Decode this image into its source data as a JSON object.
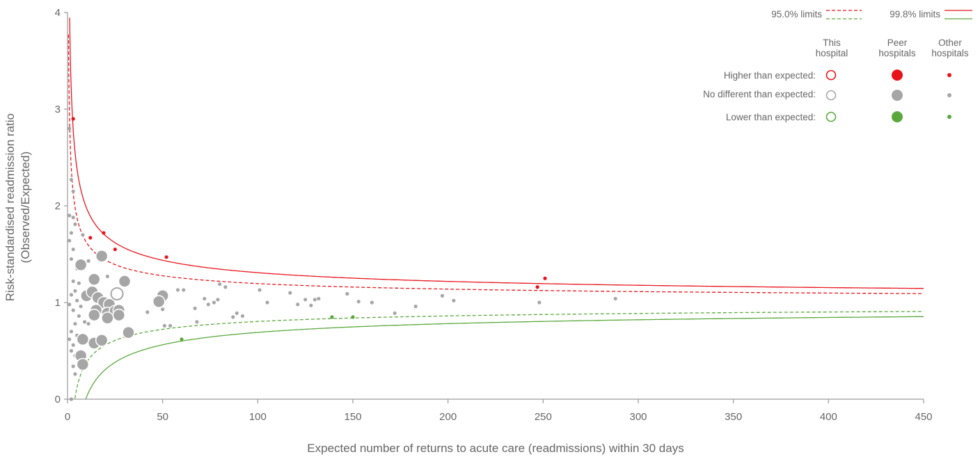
{
  "chart_data": {
    "type": "scatter",
    "title": "",
    "xlabel": "Expected number of returns to acute care (readmissions) within 30 days",
    "ylabel_line1": "Risk-standardised readmission ratio",
    "ylabel_line2": "(Observed/Expected)",
    "xlim": [
      0,
      450
    ],
    "ylim": [
      0,
      4
    ],
    "x_ticks": [
      0,
      50,
      100,
      150,
      200,
      250,
      300,
      350,
      400,
      450
    ],
    "y_ticks": [
      0,
      1,
      2,
      3,
      4
    ],
    "grid": false,
    "legend_position": "top-right",
    "legend": {
      "limits_95": "95.0% limits",
      "limits_998": "99.8% limits",
      "col_this_line1": "This",
      "col_this_line2": "hospital",
      "col_peer_line1": "Peer",
      "col_peer_line2": "hospitals",
      "col_other_line1": "Other",
      "col_other_line2": "hospitals",
      "row_higher": "Higher than expected:",
      "row_nodiff": "No different than expected:",
      "row_lower": "Lower than expected:"
    },
    "colors": {
      "higher": "#e8141b",
      "nodiff": "#a6a6a6",
      "lower": "#5aa83c",
      "axis": "#9a9a9a"
    },
    "control_limits": [
      {
        "name": "99.8% upper",
        "z": 3.09,
        "side": "upper",
        "style": "solid",
        "color": "#e8141b"
      },
      {
        "name": "95.0% upper",
        "z": 1.96,
        "side": "upper",
        "style": "dashed",
        "color": "#e8141b"
      },
      {
        "name": "95.0% lower",
        "z": 1.96,
        "side": "lower",
        "style": "dashed",
        "color": "#5aa83c"
      },
      {
        "name": "99.8% lower",
        "z": 3.09,
        "side": "lower",
        "style": "solid",
        "color": "#5aa83c"
      }
    ],
    "this_hospital": [
      {
        "x": 26,
        "y": 1.09,
        "category": "nodiff"
      }
    ],
    "peer_hospitals": [
      {
        "x": 7,
        "y": 1.39,
        "category": "nodiff"
      },
      {
        "x": 18,
        "y": 1.48,
        "category": "nodiff"
      },
      {
        "x": 14,
        "y": 1.24,
        "category": "nodiff"
      },
      {
        "x": 30,
        "y": 1.22,
        "category": "nodiff"
      },
      {
        "x": 10,
        "y": 1.07,
        "category": "nodiff"
      },
      {
        "x": 13,
        "y": 1.11,
        "category": "nodiff"
      },
      {
        "x": 16,
        "y": 1.05,
        "category": "nodiff"
      },
      {
        "x": 19,
        "y": 1.0,
        "category": "nodiff"
      },
      {
        "x": 22,
        "y": 0.98,
        "category": "nodiff"
      },
      {
        "x": 15,
        "y": 0.92,
        "category": "nodiff"
      },
      {
        "x": 21,
        "y": 0.89,
        "category": "nodiff"
      },
      {
        "x": 25,
        "y": 0.91,
        "category": "nodiff"
      },
      {
        "x": 27,
        "y": 0.92,
        "category": "nodiff"
      },
      {
        "x": 14,
        "y": 0.87,
        "category": "nodiff"
      },
      {
        "x": 21,
        "y": 0.84,
        "category": "nodiff"
      },
      {
        "x": 27,
        "y": 0.87,
        "category": "nodiff"
      },
      {
        "x": 50,
        "y": 1.07,
        "category": "nodiff"
      },
      {
        "x": 48,
        "y": 1.01,
        "category": "nodiff"
      },
      {
        "x": 32,
        "y": 0.69,
        "category": "nodiff"
      },
      {
        "x": 8,
        "y": 0.62,
        "category": "nodiff"
      },
      {
        "x": 14,
        "y": 0.58,
        "category": "nodiff"
      },
      {
        "x": 18,
        "y": 0.61,
        "category": "nodiff"
      },
      {
        "x": 7,
        "y": 0.45,
        "category": "nodiff"
      },
      {
        "x": 8,
        "y": 0.36,
        "category": "nodiff"
      }
    ],
    "other_hospitals": [
      {
        "x": 3,
        "y": 2.9,
        "category": "higher"
      },
      {
        "x": 12,
        "y": 1.67,
        "category": "higher"
      },
      {
        "x": 19,
        "y": 1.72,
        "category": "higher"
      },
      {
        "x": 25,
        "y": 1.55,
        "category": "higher"
      },
      {
        "x": 52,
        "y": 1.47,
        "category": "higher"
      },
      {
        "x": 247,
        "y": 1.16,
        "category": "higher"
      },
      {
        "x": 251,
        "y": 1.25,
        "category": "higher"
      },
      {
        "x": 60,
        "y": 0.62,
        "category": "lower"
      },
      {
        "x": 139,
        "y": 0.85,
        "category": "lower"
      },
      {
        "x": 150,
        "y": 0.85,
        "category": "lower"
      },
      {
        "x": 1,
        "y": 2.8,
        "category": "nodiff"
      },
      {
        "x": 2,
        "y": 2.27,
        "category": "nodiff"
      },
      {
        "x": 3,
        "y": 2.15,
        "category": "nodiff"
      },
      {
        "x": 1,
        "y": 1.9,
        "category": "nodiff"
      },
      {
        "x": 3,
        "y": 1.88,
        "category": "nodiff"
      },
      {
        "x": 4,
        "y": 1.81,
        "category": "nodiff"
      },
      {
        "x": 2,
        "y": 1.72,
        "category": "nodiff"
      },
      {
        "x": 1,
        "y": 1.64,
        "category": "nodiff"
      },
      {
        "x": 3,
        "y": 1.55,
        "category": "nodiff"
      },
      {
        "x": 2,
        "y": 1.45,
        "category": "nodiff"
      },
      {
        "x": 5,
        "y": 1.35,
        "category": "nodiff"
      },
      {
        "x": 3,
        "y": 1.22,
        "category": "nodiff"
      },
      {
        "x": 6,
        "y": 1.2,
        "category": "nodiff"
      },
      {
        "x": 4,
        "y": 1.12,
        "category": "nodiff"
      },
      {
        "x": 2,
        "y": 1.08,
        "category": "nodiff"
      },
      {
        "x": 5,
        "y": 1.02,
        "category": "nodiff"
      },
      {
        "x": 1,
        "y": 0.98,
        "category": "nodiff"
      },
      {
        "x": 7,
        "y": 0.96,
        "category": "nodiff"
      },
      {
        "x": 3,
        "y": 0.92,
        "category": "nodiff"
      },
      {
        "x": 6,
        "y": 0.86,
        "category": "nodiff"
      },
      {
        "x": 9,
        "y": 0.8,
        "category": "nodiff"
      },
      {
        "x": 4,
        "y": 0.78,
        "category": "nodiff"
      },
      {
        "x": 2,
        "y": 0.7,
        "category": "nodiff"
      },
      {
        "x": 5,
        "y": 0.66,
        "category": "nodiff"
      },
      {
        "x": 1,
        "y": 0.62,
        "category": "nodiff"
      },
      {
        "x": 3,
        "y": 0.56,
        "category": "nodiff"
      },
      {
        "x": 2,
        "y": 0.5,
        "category": "nodiff"
      },
      {
        "x": 4,
        "y": 0.45,
        "category": "nodiff"
      },
      {
        "x": 3,
        "y": 0.34,
        "category": "nodiff"
      },
      {
        "x": 4,
        "y": 0.26,
        "category": "nodiff"
      },
      {
        "x": 2,
        "y": 0.0,
        "category": "nodiff"
      },
      {
        "x": 8,
        "y": 1.7,
        "category": "nodiff"
      },
      {
        "x": 11,
        "y": 1.43,
        "category": "nodiff"
      },
      {
        "x": 21,
        "y": 1.27,
        "category": "nodiff"
      },
      {
        "x": 11,
        "y": 0.78,
        "category": "nodiff"
      },
      {
        "x": 42,
        "y": 0.9,
        "category": "nodiff"
      },
      {
        "x": 50,
        "y": 0.93,
        "category": "nodiff"
      },
      {
        "x": 51,
        "y": 0.76,
        "category": "nodiff"
      },
      {
        "x": 54,
        "y": 0.76,
        "category": "nodiff"
      },
      {
        "x": 58,
        "y": 1.13,
        "category": "nodiff"
      },
      {
        "x": 61,
        "y": 1.13,
        "category": "nodiff"
      },
      {
        "x": 67,
        "y": 0.94,
        "category": "nodiff"
      },
      {
        "x": 68,
        "y": 0.8,
        "category": "nodiff"
      },
      {
        "x": 72,
        "y": 1.04,
        "category": "nodiff"
      },
      {
        "x": 74,
        "y": 0.98,
        "category": "nodiff"
      },
      {
        "x": 77,
        "y": 1.0,
        "category": "nodiff"
      },
      {
        "x": 79,
        "y": 1.03,
        "category": "nodiff"
      },
      {
        "x": 80,
        "y": 1.19,
        "category": "nodiff"
      },
      {
        "x": 83,
        "y": 1.16,
        "category": "nodiff"
      },
      {
        "x": 87,
        "y": 0.85,
        "category": "nodiff"
      },
      {
        "x": 89,
        "y": 0.89,
        "category": "nodiff"
      },
      {
        "x": 92,
        "y": 0.86,
        "category": "nodiff"
      },
      {
        "x": 101,
        "y": 1.13,
        "category": "nodiff"
      },
      {
        "x": 105,
        "y": 1.0,
        "category": "nodiff"
      },
      {
        "x": 117,
        "y": 1.1,
        "category": "nodiff"
      },
      {
        "x": 121,
        "y": 0.98,
        "category": "nodiff"
      },
      {
        "x": 125,
        "y": 1.03,
        "category": "nodiff"
      },
      {
        "x": 128,
        "y": 0.97,
        "category": "nodiff"
      },
      {
        "x": 130,
        "y": 1.03,
        "category": "nodiff"
      },
      {
        "x": 132,
        "y": 1.04,
        "category": "nodiff"
      },
      {
        "x": 147,
        "y": 1.09,
        "category": "nodiff"
      },
      {
        "x": 153,
        "y": 1.01,
        "category": "nodiff"
      },
      {
        "x": 160,
        "y": 1.0,
        "category": "nodiff"
      },
      {
        "x": 172,
        "y": 0.89,
        "category": "nodiff"
      },
      {
        "x": 183,
        "y": 0.96,
        "category": "nodiff"
      },
      {
        "x": 197,
        "y": 1.07,
        "category": "nodiff"
      },
      {
        "x": 203,
        "y": 1.02,
        "category": "nodiff"
      },
      {
        "x": 248,
        "y": 1.0,
        "category": "nodiff"
      },
      {
        "x": 288,
        "y": 1.04,
        "category": "nodiff"
      }
    ]
  }
}
